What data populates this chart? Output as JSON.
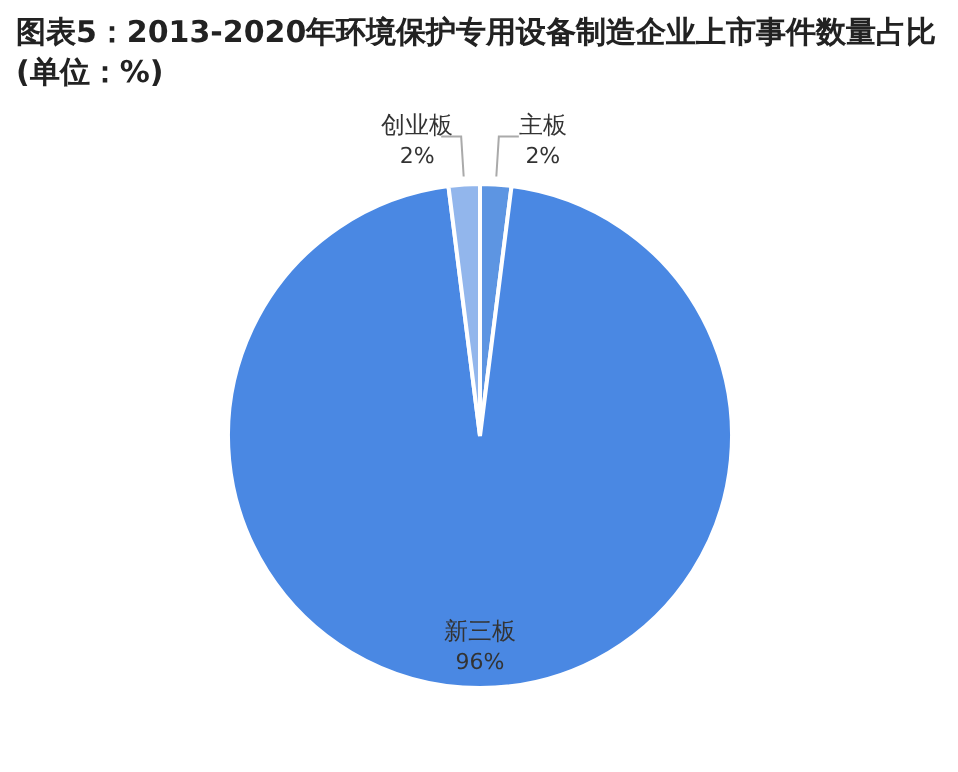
{
  "chart_data": {
    "type": "pie",
    "title": "图表5：2013-2020年环境保护专用设备制造企业上市事件数量占比(单位：%)",
    "categories": [
      "主板",
      "新三板",
      "创业板"
    ],
    "values": [
      2,
      96,
      2
    ],
    "value_labels": [
      "2%",
      "96%",
      "2%"
    ],
    "colors": [
      "#5d95e2",
      "#4a88e3",
      "#92b6ec"
    ],
    "legend": false
  }
}
